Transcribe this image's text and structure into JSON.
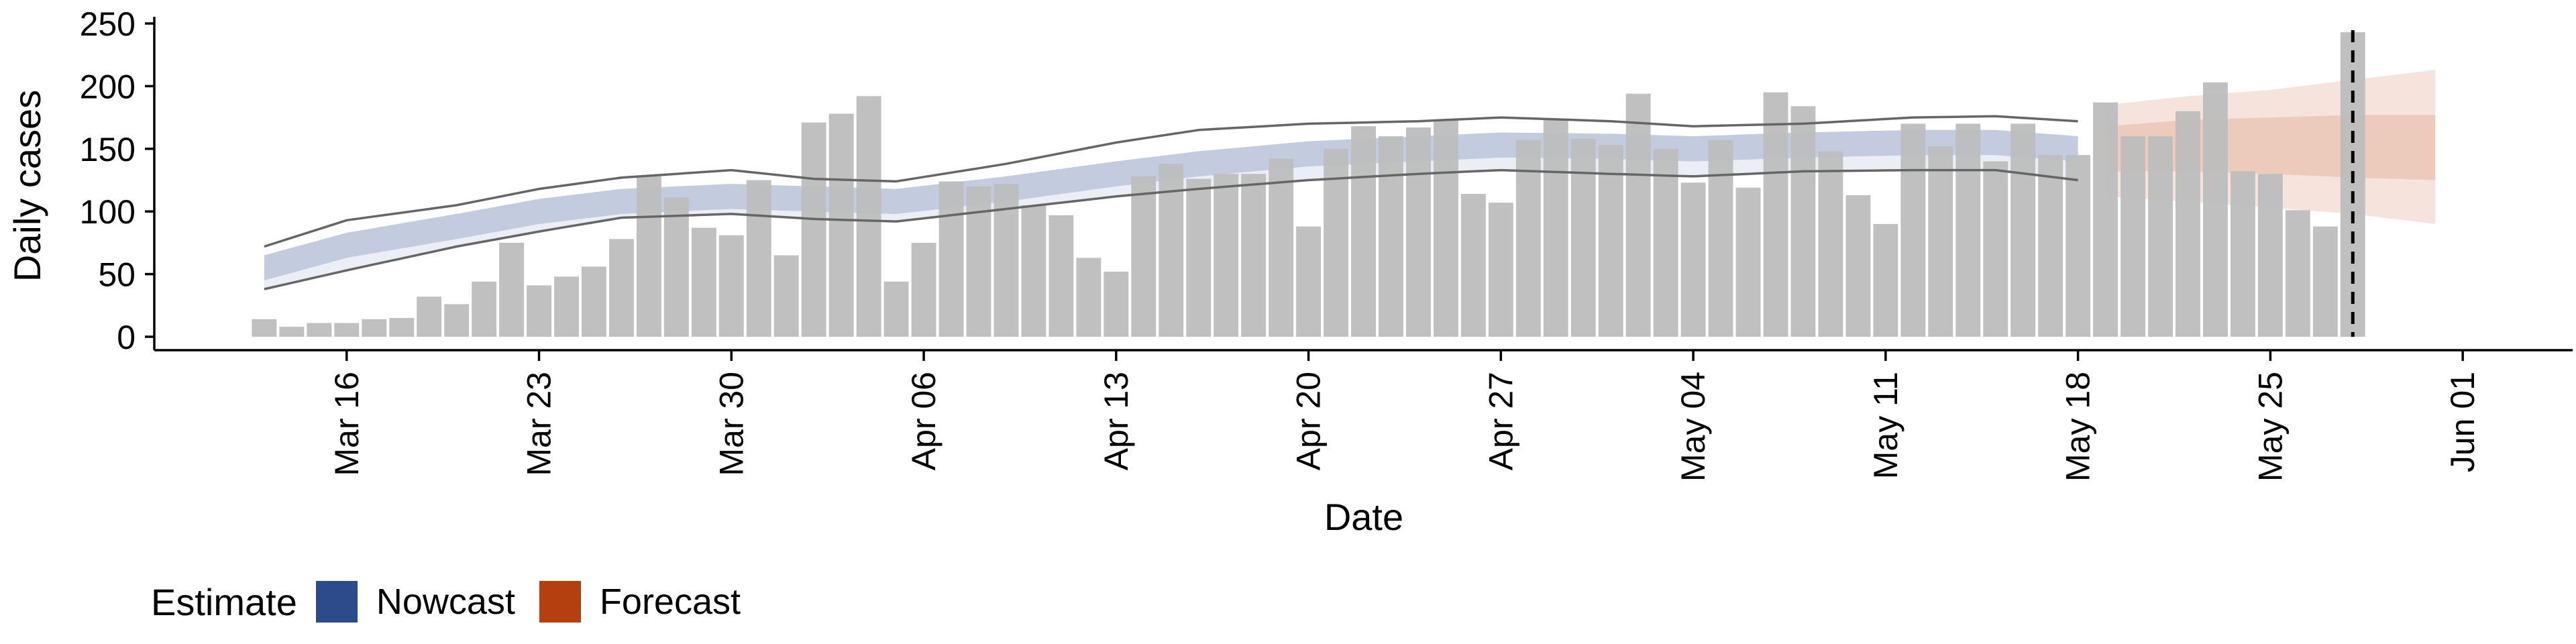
{
  "chart_data": {
    "type": "bar",
    "xlabel": "Date",
    "ylabel": "Daily cases",
    "ylim": [
      0,
      250
    ],
    "yticks": [
      0,
      50,
      100,
      150,
      200,
      250
    ],
    "xticks": [
      {
        "date": "2020-03-16",
        "label": "Mar 16"
      },
      {
        "date": "2020-03-23",
        "label": "Mar 23"
      },
      {
        "date": "2020-03-30",
        "label": "Mar 30"
      },
      {
        "date": "2020-04-06",
        "label": "Apr 06"
      },
      {
        "date": "2020-04-13",
        "label": "Apr 13"
      },
      {
        "date": "2020-04-20",
        "label": "Apr 20"
      },
      {
        "date": "2020-04-27",
        "label": "Apr 27"
      },
      {
        "date": "2020-05-04",
        "label": "May 04"
      },
      {
        "date": "2020-05-11",
        "label": "May 11"
      },
      {
        "date": "2020-05-18",
        "label": "May 18"
      },
      {
        "date": "2020-05-25",
        "label": "May 25"
      },
      {
        "date": "2020-06-01",
        "label": "Jun 01"
      }
    ],
    "xlim": [
      "2020-03-09",
      "2020-06-05"
    ],
    "bars": {
      "start_date": "2020-03-13",
      "color": "#bdbdbd",
      "values": [
        14,
        8,
        11,
        11,
        14,
        15,
        32,
        26,
        44,
        75,
        41,
        48,
        56,
        78,
        128,
        111,
        87,
        81,
        125,
        65,
        171,
        178,
        192,
        44,
        75,
        124,
        120,
        122,
        105,
        97,
        63,
        52,
        128,
        138,
        126,
        130,
        130,
        142,
        88,
        150,
        168,
        160,
        167,
        173,
        114,
        107,
        157,
        173,
        158,
        153,
        194,
        150,
        123,
        157,
        119,
        195,
        184,
        148,
        113,
        90,
        170,
        152,
        170,
        140,
        170,
        145,
        145,
        187,
        160,
        160,
        180,
        203,
        132,
        130,
        101,
        88,
        243
      ]
    },
    "estimate_date": "2020-05-28",
    "nowcast": {
      "name": "Nowcast",
      "color": "#2d4a8a",
      "start_date": "2020-03-13",
      "end_date": "2020-05-18",
      "knots": [
        [
          "2020-03-13",
          55,
          45,
          65,
          38,
          72
        ],
        [
          "2020-03-16",
          73,
          63,
          83,
          53,
          93
        ],
        [
          "2020-03-20",
          88,
          78,
          98,
          72,
          105
        ],
        [
          "2020-03-23",
          100,
          90,
          110,
          84,
          118
        ],
        [
          "2020-03-26",
          108,
          98,
          118,
          95,
          127
        ],
        [
          "2020-03-30",
          112,
          102,
          122,
          98,
          133
        ],
        [
          "2020-04-02",
          110,
          100,
          120,
          94,
          126
        ],
        [
          "2020-04-05",
          108,
          98,
          118,
          92,
          124
        ],
        [
          "2020-04-09",
          118,
          108,
          128,
          102,
          138
        ],
        [
          "2020-04-13",
          130,
          120,
          140,
          112,
          155
        ],
        [
          "2020-04-16",
          138,
          128,
          148,
          118,
          165
        ],
        [
          "2020-04-20",
          146,
          136,
          156,
          125,
          170
        ],
        [
          "2020-04-24",
          150,
          140,
          160,
          130,
          172
        ],
        [
          "2020-04-27",
          153,
          143,
          163,
          133,
          175
        ],
        [
          "2020-05-01",
          152,
          142,
          162,
          130,
          172
        ],
        [
          "2020-05-04",
          150,
          140,
          160,
          128,
          168
        ],
        [
          "2020-05-08",
          153,
          143,
          163,
          132,
          170
        ],
        [
          "2020-05-12",
          155,
          145,
          165,
          133,
          175
        ],
        [
          "2020-05-15",
          155,
          145,
          165,
          133,
          176
        ],
        [
          "2020-05-18",
          150,
          140,
          160,
          125,
          172
        ]
      ]
    },
    "forecast": {
      "name": "Forecast",
      "color": "#b5400f",
      "start_date": "2020-05-19",
      "end_date": "2020-05-31",
      "knots": [
        [
          "2020-05-19",
          150,
          132,
          168,
          112,
          185
        ],
        [
          "2020-05-22",
          153,
          132,
          173,
          108,
          192
        ],
        [
          "2020-05-25",
          153,
          130,
          175,
          103,
          197
        ],
        [
          "2020-05-28",
          152,
          127,
          177,
          98,
          205
        ],
        [
          "2020-05-31",
          150,
          125,
          177,
          90,
          213
        ]
      ]
    },
    "legend": {
      "title": "Estimate",
      "position": "bottom-left",
      "items": [
        {
          "label": "Nowcast",
          "color": "#2d4a8a"
        },
        {
          "label": "Forecast",
          "color": "#b5400f"
        }
      ]
    }
  }
}
